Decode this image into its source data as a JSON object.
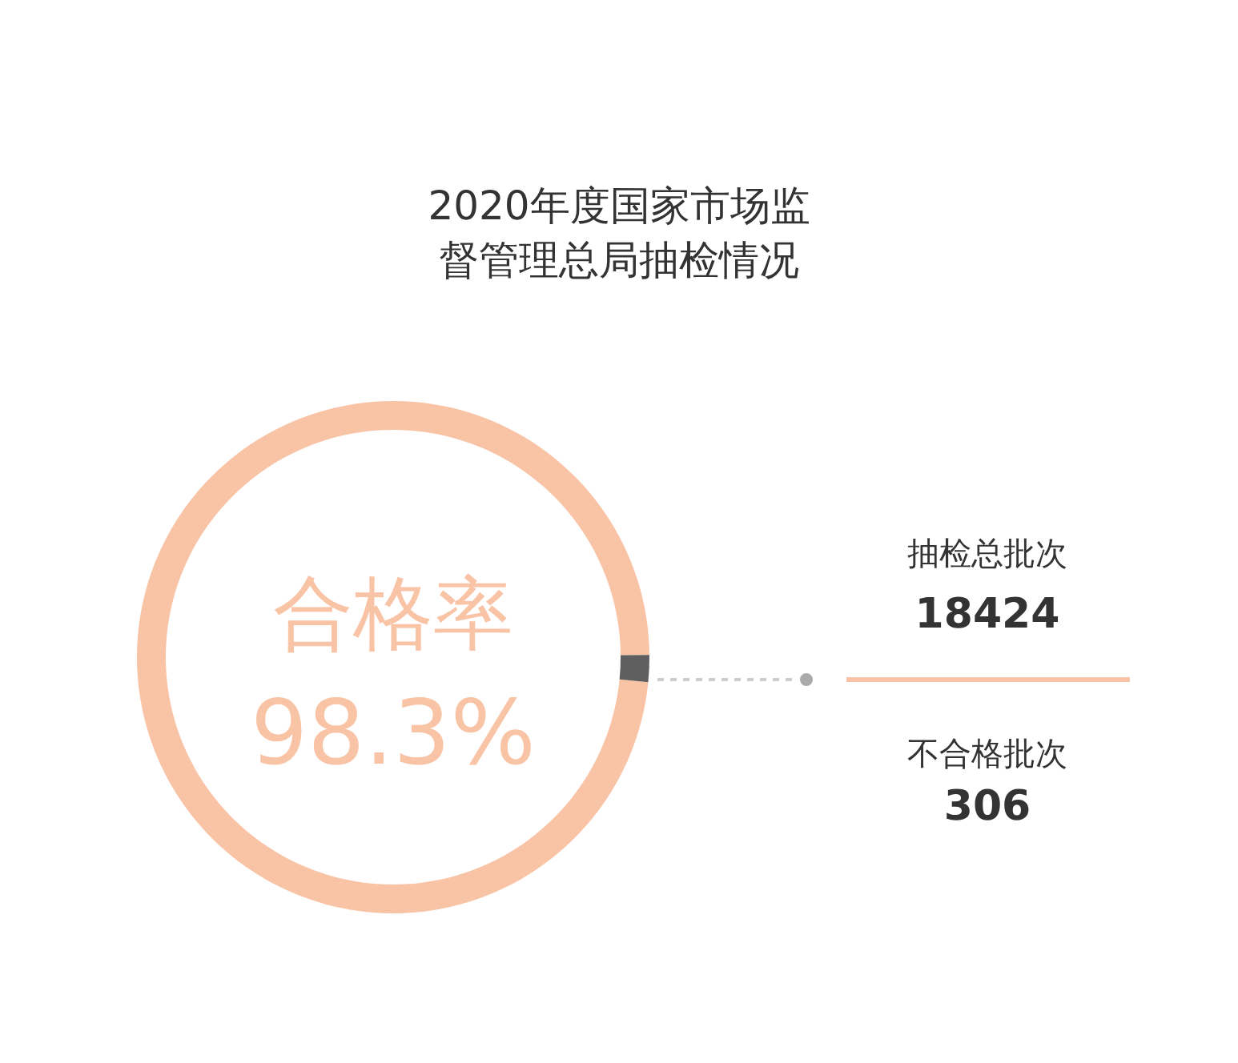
{
  "chart_data": {
    "type": "donut",
    "title": "2020年度国家市场监督管理总局抽检情况",
    "categories": [
      "合格率",
      null
    ],
    "values": [
      98.3,
      1.7
    ],
    "colors": [
      "#f9c3a5",
      "#5f5f5f"
    ],
    "value_labels": [
      "98.3%",
      null
    ],
    "annotations": [
      "抽检总批次",
      "18424",
      "不合格批次",
      "306"
    ]
  }
}
